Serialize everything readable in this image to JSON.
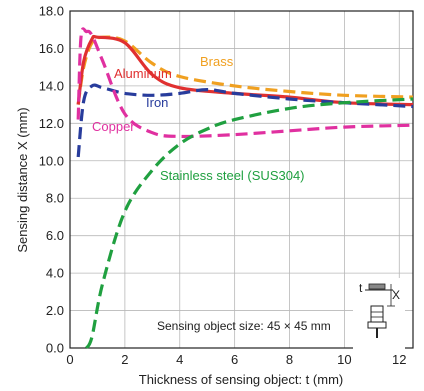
{
  "chart_data": {
    "type": "line",
    "xlabel": "Thickness of sensing object: t (mm)",
    "ylabel": "Sensing distance X (mm)",
    "xlim": [
      0,
      12.5
    ],
    "ylim": [
      0,
      18
    ],
    "x_ticks": [
      "0",
      "2",
      "4",
      "6",
      "8",
      "10",
      "12"
    ],
    "y_ticks": [
      "0.0",
      "2.0",
      "4.0",
      "6.0",
      "8.0",
      "10.0",
      "12.0",
      "14.0",
      "16.0",
      "18.0"
    ],
    "grid": true,
    "series": [
      {
        "name": "Brass",
        "color": "#f0a020",
        "dash": "long-dash",
        "points": [
          [
            0.3,
            13.0
          ],
          [
            0.5,
            15.0
          ],
          [
            0.8,
            16.3
          ],
          [
            1.2,
            16.6
          ],
          [
            2.0,
            16.4
          ],
          [
            3.0,
            15.2
          ],
          [
            4.0,
            14.5
          ],
          [
            6.0,
            14.0
          ],
          [
            8.0,
            13.7
          ],
          [
            10.0,
            13.5
          ],
          [
            12.5,
            13.4
          ]
        ]
      },
      {
        "name": "Aluminum",
        "color": "#e03030",
        "dash": "solid",
        "points": [
          [
            0.3,
            13.0
          ],
          [
            0.5,
            15.3
          ],
          [
            0.8,
            16.5
          ],
          [
            1.0,
            16.6
          ],
          [
            2.0,
            16.3
          ],
          [
            3.0,
            14.6
          ],
          [
            4.0,
            13.9
          ],
          [
            6.0,
            13.6
          ],
          [
            8.0,
            13.4
          ],
          [
            10.0,
            13.1
          ],
          [
            12.5,
            13.0
          ]
        ]
      },
      {
        "name": "Iron",
        "color": "#283c9c",
        "dash": "long-dash",
        "points": [
          [
            0.3,
            10.2
          ],
          [
            0.5,
            13.2
          ],
          [
            0.8,
            14.0
          ],
          [
            1.2,
            13.9
          ],
          [
            2.0,
            13.6
          ],
          [
            3.0,
            13.5
          ],
          [
            4.0,
            13.6
          ],
          [
            5.0,
            13.8
          ],
          [
            6.0,
            13.6
          ],
          [
            8.0,
            13.3
          ],
          [
            10.0,
            13.1
          ],
          [
            12.5,
            12.9
          ]
        ]
      },
      {
        "name": "Copper",
        "color": "#e030a0",
        "dash": "long-dash",
        "points": [
          [
            0.3,
            12.2
          ],
          [
            0.4,
            16.6
          ],
          [
            0.6,
            16.9
          ],
          [
            0.8,
            16.7
          ],
          [
            1.2,
            15.3
          ],
          [
            2.0,
            12.5
          ],
          [
            3.0,
            11.5
          ],
          [
            4.0,
            11.3
          ],
          [
            6.0,
            11.4
          ],
          [
            8.0,
            11.6
          ],
          [
            10.0,
            11.8
          ],
          [
            12.5,
            11.9
          ]
        ]
      },
      {
        "name": "Stainless steel (SUS304)",
        "color": "#20a040",
        "dash": "long-dash",
        "points": [
          [
            0.6,
            0.0
          ],
          [
            0.8,
            0.6
          ],
          [
            1.2,
            3.5
          ],
          [
            2.0,
            7.3
          ],
          [
            3.0,
            9.5
          ],
          [
            4.0,
            10.9
          ],
          [
            5.0,
            11.7
          ],
          [
            6.0,
            12.2
          ],
          [
            8.0,
            12.8
          ],
          [
            10.0,
            13.1
          ],
          [
            12.5,
            13.3
          ]
        ]
      }
    ],
    "annotation": "Sensing object size: 45 × 45 mm",
    "diagram_labels": {
      "t": "t",
      "x": "X"
    }
  }
}
